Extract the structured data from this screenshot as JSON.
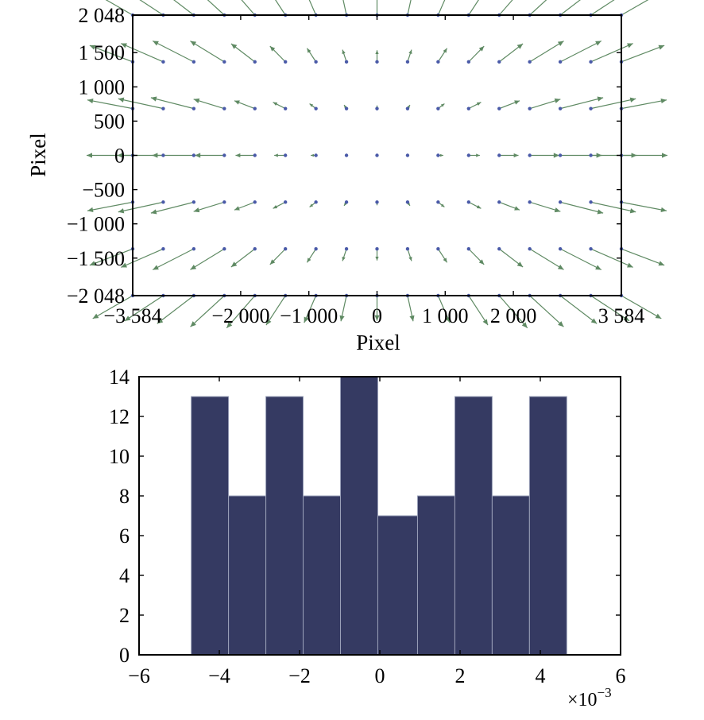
{
  "chart_data": [
    {
      "type": "quiver",
      "xlabel": "Pixel",
      "ylabel": "Pixel",
      "xlim": [
        -3584,
        3584
      ],
      "ylim": [
        -2048,
        2048
      ],
      "xticks": [
        -3584,
        -2000,
        -1000,
        0,
        1000,
        2000,
        3584
      ],
      "xtick_labels": [
        "−3 584",
        "−2 000",
        "−1 000",
        "0",
        "1 000",
        "2 000",
        "3 584"
      ],
      "yticks": [
        2048,
        1500,
        1000,
        500,
        0,
        -500,
        -1000,
        -1500,
        -2048
      ],
      "ytick_labels": [
        "2 048",
        "1 500",
        "1 000",
        "500",
        "0",
        "−500",
        "−1 000",
        "−1 500",
        "−2 048"
      ],
      "grid_x": [
        -3584,
        -3136,
        -2688,
        -2240,
        -1792,
        -1344,
        -896,
        -448,
        0,
        448,
        896,
        1344,
        1792,
        2240,
        2688,
        3136,
        3584
      ],
      "grid_y": [
        2048,
        1365,
        683,
        0,
        -683,
        -1365,
        -2048
      ],
      "vector_model": "radial distortion, vectors point away from the image centre, length grows with distance",
      "point_color": "#4a5aa8",
      "arrow_color": "#5f8a63"
    },
    {
      "type": "histogram",
      "xlim": [
        -6,
        6
      ],
      "ylim": [
        0,
        14
      ],
      "xticks": [
        -6,
        -4,
        -2,
        0,
        2,
        4,
        6
      ],
      "xtick_labels": [
        "−6",
        "−4",
        "−2",
        "0",
        "2",
        "4",
        "6"
      ],
      "yticks": [
        0,
        2,
        4,
        6,
        8,
        10,
        12,
        14
      ],
      "ytick_labels": [
        "0",
        "2",
        "4",
        "6",
        "8",
        "10",
        "12",
        "14"
      ],
      "x_multiplier_label": "×10",
      "x_multiplier_exponent": "−3",
      "bin_edges": [
        -4.7,
        -3.77,
        -2.84,
        -1.91,
        -0.98,
        -0.05,
        0.94,
        1.87,
        2.8,
        3.73,
        4.66
      ],
      "counts": [
        13,
        8,
        13,
        8,
        14,
        7,
        8,
        13,
        8,
        13
      ],
      "bar_color": "#353a62"
    }
  ]
}
